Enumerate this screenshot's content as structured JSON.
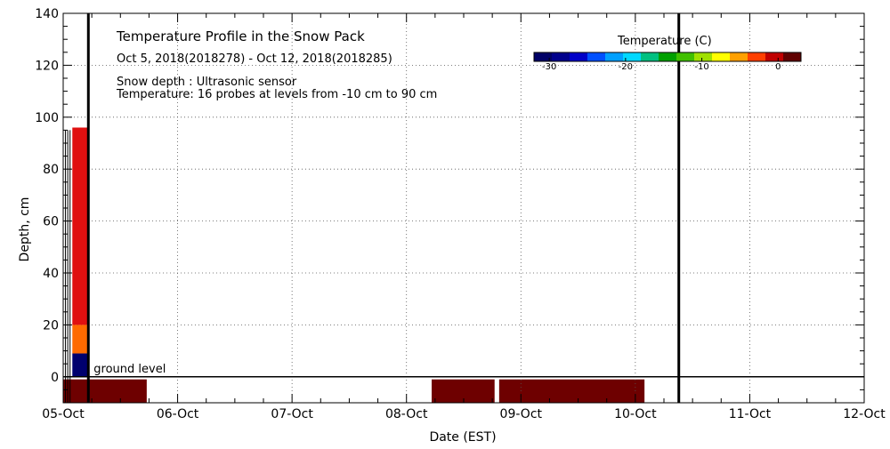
{
  "chart_data": {
    "type": "heatmap",
    "title": "Temperature Profile in the Snow Pack",
    "subtitle": "Oct  5, 2018(2018278) - Oct 12, 2018(2018285)",
    "notes": [
      "Snow depth : Ultrasonic sensor",
      "Temperature: 16 probes at levels from -10 cm to 90 cm"
    ],
    "ground_label": "ground level",
    "xlabel": "Date (EST)",
    "ylabel": "Depth, cm",
    "x_ticks": [
      "05-Oct",
      "06-Oct",
      "07-Oct",
      "08-Oct",
      "09-Oct",
      "10-Oct",
      "11-Oct",
      "12-Oct"
    ],
    "xlim": [
      0,
      7
    ],
    "ylim": [
      -10,
      140
    ],
    "y_ticks": [
      0,
      20,
      40,
      60,
      80,
      100,
      120,
      140
    ],
    "grid": true,
    "colorbar": {
      "label": "Temperature (C)",
      "range": [
        -32,
        3
      ],
      "ticks": [
        -30,
        -20,
        -10,
        0
      ],
      "colors": [
        "#000066",
        "#00008c",
        "#0000c8",
        "#0050ff",
        "#00a0ff",
        "#00d8ff",
        "#00c080",
        "#00a000",
        "#40c000",
        "#a0e000",
        "#ffff00",
        "#ffa000",
        "#ff4000",
        "#c00000",
        "#600000"
      ]
    },
    "ground_band": [
      {
        "start": 0.0,
        "end": 0.73,
        "color": "#6e0000"
      },
      {
        "start": 3.22,
        "end": 3.77,
        "color": "#6e0000"
      },
      {
        "start": 3.81,
        "end": 5.08,
        "color": "#6e0000"
      }
    ],
    "snow_columns": [
      {
        "start": 0.08,
        "end": 0.22,
        "bottom": 0,
        "top": 9,
        "color": "#00006e"
      },
      {
        "start": 0.08,
        "end": 0.22,
        "bottom": 9,
        "top": 20,
        "color": "#ff6a00"
      },
      {
        "start": 0.08,
        "end": 0.22,
        "bottom": 20,
        "top": 96,
        "color": "#e01010"
      }
    ],
    "snow_depth_lines": [
      {
        "x": 0.22,
        "bottom": -10,
        "top": 140
      },
      {
        "x": 5.38,
        "bottom": -10,
        "top": 140
      }
    ]
  }
}
